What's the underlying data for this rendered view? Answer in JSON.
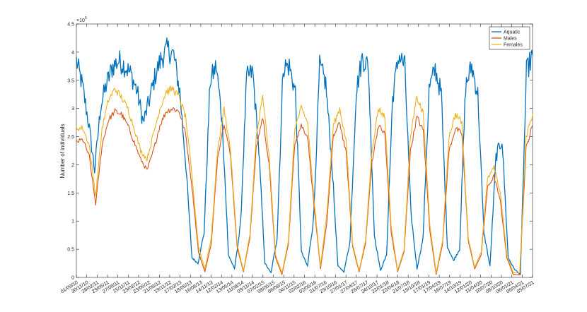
{
  "chart_data": {
    "type": "line",
    "title": "",
    "xlabel": "",
    "ylabel": "Number of individuals",
    "y_exponent_label": "×10",
    "y_exponent_power": "5",
    "ylim": [
      0,
      450000
    ],
    "yticks": [
      0,
      50000,
      100000,
      150000,
      200000,
      250000,
      300000,
      350000,
      400000,
      450000
    ],
    "ytick_labels": [
      "0",
      "0.5",
      "1",
      "1.5",
      "2",
      "2.5",
      "3",
      "3.5",
      "4",
      "4.5"
    ],
    "xtick_labels": [
      "01/09/10",
      "30/11/10",
      "28/02/11",
      "29/05/11",
      "27/08/11",
      "25/11/11",
      "23/02/12",
      "23/05/12",
      "21/08/12",
      "19/11/12",
      "17/02/13",
      "18/05/13",
      "16/08/13",
      "14/11/13",
      "12/02/14",
      "13/05/14",
      "11/08/14",
      "09/11/14",
      "07/02/15",
      "08/05/15",
      "06/08/15",
      "04/11/15",
      "02/02/16",
      "02/05/16",
      "31/07/16",
      "29/10/16",
      "27/01/17",
      "27/04/17",
      "26/07/17",
      "24/10/17",
      "22/01/18",
      "22/04/18",
      "21/07/18",
      "19/10/18",
      "17/01/19",
      "17/04/19",
      "16/07/19",
      "14/10/19",
      "12/01/20",
      "11/04/20",
      "10/07/20",
      "08/10/20",
      "06/01/21",
      "06/04/21",
      "05/07/21"
    ],
    "legend_position": "top-right",
    "grid": false,
    "series": [
      {
        "name": "Aquatic",
        "color": "#0072BD",
        "values": [
          385000,
          340000,
          275000,
          190000,
          305000,
          345000,
          375000,
          385000,
          375000,
          360000,
          330000,
          275000,
          315000,
          360000,
          390000,
          405000,
          395000,
          330000,
          200000,
          35000,
          25000,
          80000,
          350000,
          375000,
          275000,
          40000,
          15000,
          95000,
          355000,
          365000,
          225000,
          25000,
          8000,
          70000,
          375000,
          375000,
          330000,
          45000,
          20000,
          105000,
          375000,
          345000,
          205000,
          20000,
          10000,
          65000,
          330000,
          390000,
          375000,
          75000,
          12000,
          40000,
          320000,
          395000,
          375000,
          115000,
          15000,
          70000,
          335000,
          370000,
          325000,
          55000,
          30000,
          50000,
          340000,
          375000,
          325000,
          80000,
          20000,
          215000,
          245000,
          35000,
          15000,
          5000,
          365000,
          395000
        ]
      },
      {
        "name": "Males",
        "color": "#D95319",
        "values": [
          240000,
          245000,
          215000,
          130000,
          235000,
          280000,
          295000,
          290000,
          270000,
          240000,
          210000,
          190000,
          225000,
          270000,
          295000,
          300000,
          295000,
          255000,
          160000,
          45000,
          10000,
          60000,
          215000,
          275000,
          215000,
          55000,
          10000,
          70000,
          230000,
          285000,
          200000,
          35000,
          5000,
          60000,
          240000,
          270000,
          250000,
          125000,
          15000,
          100000,
          250000,
          275000,
          220000,
          55000,
          10000,
          60000,
          205000,
          270000,
          255000,
          80000,
          10000,
          45000,
          225000,
          285000,
          260000,
          85000,
          5000,
          60000,
          225000,
          265000,
          255000,
          65000,
          15000,
          40000,
          160000,
          180000,
          135000,
          35000,
          5000,
          5000,
          230000,
          270000
        ]
      },
      {
        "name": "Females",
        "color": "#EDB120",
        "values": [
          265000,
          265000,
          235000,
          145000,
          265000,
          315000,
          335000,
          320000,
          300000,
          265000,
          225000,
          210000,
          255000,
          300000,
          330000,
          335000,
          320000,
          285000,
          180000,
          55000,
          15000,
          70000,
          230000,
          300000,
          225000,
          60000,
          12000,
          75000,
          250000,
          320000,
          215000,
          40000,
          8000,
          65000,
          265000,
          300000,
          275000,
          135000,
          20000,
          115000,
          270000,
          300000,
          240000,
          60000,
          12000,
          65000,
          225000,
          300000,
          285000,
          90000,
          12000,
          50000,
          250000,
          320000,
          290000,
          95000,
          8000,
          65000,
          250000,
          290000,
          275000,
          70000,
          18000,
          45000,
          175000,
          195000,
          150000,
          40000,
          8000,
          8000,
          250000,
          290000
        ]
      }
    ]
  }
}
